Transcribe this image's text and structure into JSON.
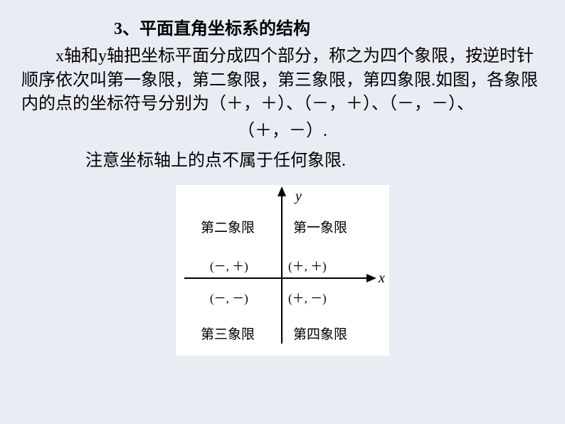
{
  "title": "3、平面直角坐标系的结构",
  "para1": "x轴和y轴把坐标平面分成四个部分，称之为四个象限，按逆时针顺序依次叫第一象限，第二象限，第三象限，第四象限.如图，各象限内的点的坐标符号分别为（＋，＋）、（－，＋）、（－，－）、",
  "para1_tail": "（＋，－）.",
  "note": "注意坐标轴上的点不属于任何象限.",
  "diagram": {
    "y_label": "y",
    "x_label": "x",
    "quadrants": {
      "q1": {
        "name": "第一象限",
        "sign": "(＋, ＋)"
      },
      "q2": {
        "name": "第二象限",
        "sign": "(－, ＋)"
      },
      "q3": {
        "name": "第三象限",
        "sign": "(－, －)"
      },
      "q4": {
        "name": "第四象限",
        "sign": "(＋, －)"
      }
    },
    "colors": {
      "background": "#ffffff",
      "axis": "#000000",
      "text": "#000000"
    },
    "axis_style": {
      "line_width": 2,
      "arrow_size": 12
    }
  },
  "page_background": "#e8ecf3",
  "font": {
    "body_size": 24,
    "diagram_label_size": 19,
    "diagram_sign_size": 17,
    "axis_label_size": 20
  }
}
